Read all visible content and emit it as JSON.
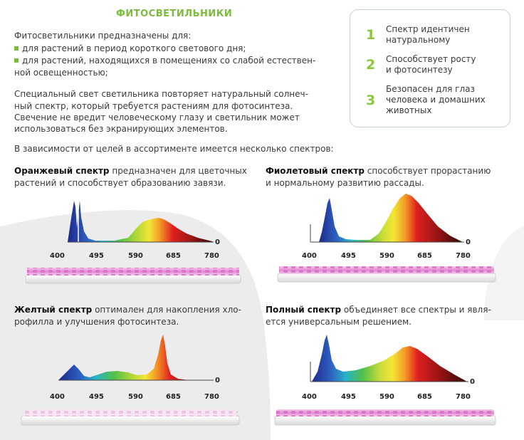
{
  "title": "ФИТОСВЕТИЛЬНИКИ",
  "intro": {
    "lead": "Фитосветильники предназначены для:",
    "bullets": [
      "для растений в период короткого светового дня;",
      "для растений, находящихся в помещениях со слабой естествен-",
      "ной освещенностью;"
    ]
  },
  "paragraph": [
    "Специальный свет светильника повторяет натуральный солнеч-",
    "ный спектр, который требуется растениям для фотосинтеза.",
    "Свечение не вредит человеческому глазу и светильник может",
    "использоваться без экранирующих элементов."
  ],
  "assortment": "В зависимости от целей в ассортименте имеется несколько спектров:",
  "features": [
    {
      "num": "1",
      "line1": "Спектр идентичен",
      "line2": "натуральному",
      "line3": ""
    },
    {
      "num": "2",
      "line1": "Способствует росту",
      "line2": "и фотосинтезу",
      "line3": ""
    },
    {
      "num": "3",
      "line1": "Безопасен для глаз",
      "line2": "человека и домашних",
      "line3": "животных"
    }
  ],
  "spectra": [
    {
      "name": "Оранжевый спектр",
      "line1": " предназначен для цветочных",
      "line2": "растений и способствует образованию завязи."
    },
    {
      "name": "Фиолетовый спектр",
      "line1": " способствует прорастанию",
      "line2": "и нормальному развитию рассады."
    },
    {
      "name": "Желтый спектр",
      "line1": " оптимален для накопления хло-",
      "line2": "рофилла и улучшения фотосинтеза."
    },
    {
      "name": "Полный спектр",
      "line1": " объединяет все спектры и явля-",
      "line2": "ется универсальным решением."
    }
  ],
  "axis": {
    "ticks": [
      "400",
      "495",
      "590",
      "685",
      "780"
    ],
    "zero": "0"
  },
  "colors": {
    "accent": "#7dbb3c",
    "number": "#8cc63f",
    "lamp_light": "#e59ad6"
  },
  "icons": [
    "green-square-bullet-icon",
    "led-lamp-icon"
  ]
}
